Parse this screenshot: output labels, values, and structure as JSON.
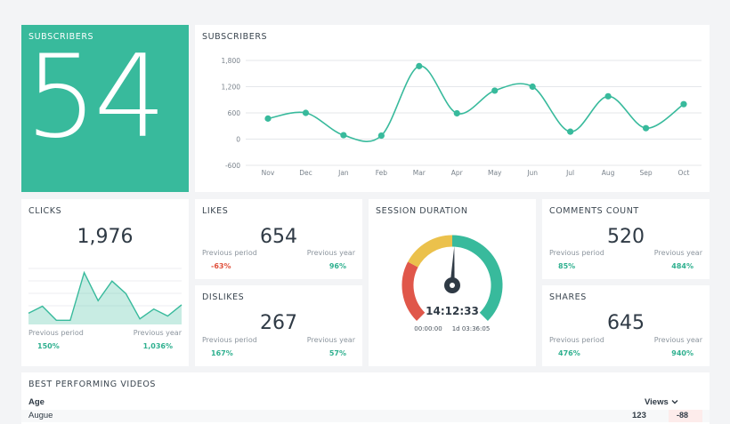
{
  "subscribers_tile": {
    "title": "SUBSCRIBERS",
    "value": "54"
  },
  "subscribers_chart": {
    "title": "SUBSCRIBERS"
  },
  "chart_data": {
    "type": "line",
    "title": "SUBSCRIBERS",
    "x": [
      "Nov",
      "Dec",
      "Jan",
      "Feb",
      "Mar",
      "Apr",
      "May",
      "Jun",
      "Jul",
      "Aug",
      "Sep",
      "Oct"
    ],
    "series": [
      {
        "values": [
          470,
          600,
          90,
          80,
          1670,
          590,
          1110,
          1200,
          170,
          980,
          250,
          800
        ]
      }
    ],
    "yticks": [
      "1,800",
      "1,200",
      "600",
      "0",
      "-600"
    ],
    "ylim": [
      -600,
      1800
    ],
    "grid": true,
    "color": "#38ba9c"
  },
  "clicks": {
    "title": "CLICKS",
    "value": "1,976",
    "prev_period_label": "Previous period",
    "prev_period_value": "150%",
    "prev_year_label": "Previous year",
    "prev_year_value": "1,036%",
    "sparkline": [
      8,
      13,
      3,
      3,
      37,
      17,
      31,
      22,
      4,
      11,
      6,
      14
    ]
  },
  "likes": {
    "title": "LIKES",
    "value": "654",
    "prev_period_label": "Previous period",
    "prev_period_value": "-63%",
    "prev_year_label": "Previous year",
    "prev_year_value": "96%"
  },
  "dislikes": {
    "title": "DISLIKES",
    "value": "267",
    "prev_period_label": "Previous period",
    "prev_period_value": "167%",
    "prev_year_label": "Previous year",
    "prev_year_value": "57%"
  },
  "session": {
    "title": "SESSION DURATION",
    "value": "14:12:33",
    "min_label": "00:00:00",
    "max_label": "1d 03:36:05",
    "fraction": 0.5
  },
  "comments": {
    "title": "COMMENTS COUNT",
    "value": "520",
    "prev_period_label": "Previous period",
    "prev_period_value": "85%",
    "prev_year_label": "Previous year",
    "prev_year_value": "484%"
  },
  "shares": {
    "title": "SHARES",
    "value": "645",
    "prev_period_label": "Previous period",
    "prev_period_value": "476%",
    "prev_year_label": "Previous year",
    "prev_year_value": "940%"
  },
  "videos": {
    "title": "BEST PERFORMING VIDEOS",
    "col_age": "Age",
    "col_views": "Views",
    "sort_icon": "chevron-down-icon",
    "rows": [
      {
        "name": "Augue",
        "views": "123",
        "change": "-88"
      }
    ]
  },
  "colors": {
    "accent": "#38ba9c",
    "negative": "#e0503c",
    "gauge_red": "#e0574a",
    "gauge_yellow": "#ebc14c",
    "gauge_teal": "#38ba9c"
  }
}
